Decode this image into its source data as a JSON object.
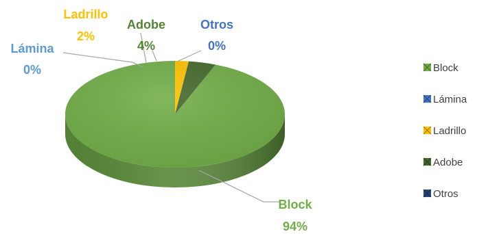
{
  "chart_data": {
    "type": "pie",
    "style": "3d",
    "title": "",
    "slices": [
      {
        "label": "Block",
        "value": 94,
        "percent_label": "94%",
        "color": "#70AD47",
        "label_color": "#70AD47"
      },
      {
        "label": "Lámina",
        "value": 0,
        "percent_label": "0%",
        "color": "#4472C4",
        "label_color": "#5B9BD5"
      },
      {
        "label": "Ladrillo",
        "value": 2,
        "percent_label": "2%",
        "color": "#FFC000",
        "label_color": "#FFC000"
      },
      {
        "label": "Adobe",
        "value": 4,
        "percent_label": "4%",
        "color": "#43682B",
        "label_color": "#548235"
      },
      {
        "label": "Otros",
        "value": 0,
        "percent_label": "0%",
        "color": "#264478",
        "label_color": "#4472C4"
      }
    ],
    "legend": {
      "position": "right",
      "items": [
        "Block",
        "Lámina",
        "Ladrillo",
        "Adobe",
        "Otros"
      ]
    }
  }
}
